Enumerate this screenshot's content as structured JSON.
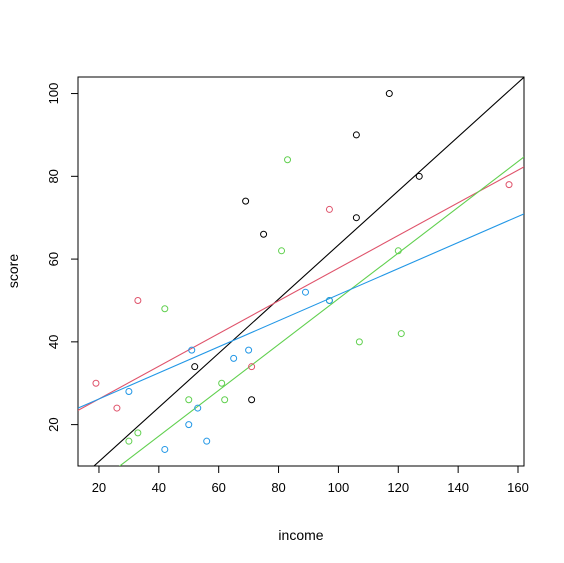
{
  "chart_data": {
    "type": "scatter",
    "xlabel": "income",
    "ylabel": "score",
    "xlim": [
      13,
      162
    ],
    "ylim": [
      10,
      104
    ],
    "xticks": [
      20,
      40,
      60,
      80,
      100,
      120,
      140,
      160
    ],
    "yticks": [
      20,
      40,
      60,
      80,
      100
    ],
    "grid": false,
    "legend": "none",
    "series": [
      {
        "color": "#000000",
        "points": [
          [
            52,
            34
          ],
          [
            69,
            74
          ],
          [
            71,
            26
          ],
          [
            75,
            66
          ],
          [
            106,
            90
          ],
          [
            106,
            70
          ],
          [
            117,
            100
          ],
          [
            127,
            80
          ]
        ],
        "fit": {
          "intercept": -2.0,
          "slope": 0.654
        }
      },
      {
        "color": "#DF536B",
        "points": [
          [
            19,
            30
          ],
          [
            26,
            24
          ],
          [
            33,
            50
          ],
          [
            71,
            34
          ],
          [
            97,
            72
          ],
          [
            157,
            78
          ]
        ],
        "fit": {
          "intercept": 18.3,
          "slope": 0.395
        }
      },
      {
        "color": "#61D04F",
        "points": [
          [
            30,
            16
          ],
          [
            33,
            18
          ],
          [
            42,
            48
          ],
          [
            50,
            26
          ],
          [
            61,
            30
          ],
          [
            62,
            26
          ],
          [
            81,
            62
          ],
          [
            83,
            84
          ],
          [
            97,
            50
          ],
          [
            107,
            40
          ],
          [
            120,
            62
          ],
          [
            121,
            42
          ]
        ],
        "fit": {
          "intercept": -4.9,
          "slope": 0.553
        }
      },
      {
        "color": "#2297E6",
        "points": [
          [
            30,
            28
          ],
          [
            42,
            14
          ],
          [
            50,
            20
          ],
          [
            51,
            38
          ],
          [
            53,
            24
          ],
          [
            56,
            16
          ],
          [
            65,
            36
          ],
          [
            70,
            38
          ],
          [
            89,
            52
          ],
          [
            97,
            50
          ]
        ],
        "fit": {
          "intercept": 19.9,
          "slope": 0.315
        }
      }
    ]
  }
}
